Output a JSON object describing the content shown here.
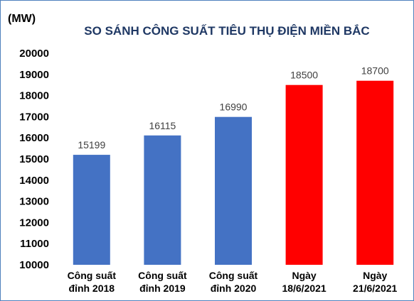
{
  "chart_data": {
    "type": "bar",
    "title": "SO SÁNH CÔNG SUẤT TIÊU THỤ ĐIỆN MIỀN BẮC",
    "unit_label": "(MW)",
    "ylim": [
      10000,
      20000
    ],
    "yticks": [
      10000,
      11000,
      12000,
      13000,
      14000,
      15000,
      16000,
      17000,
      18000,
      19000,
      20000
    ],
    "grid": false,
    "categories": [
      [
        "Công suất",
        "đỉnh 2018"
      ],
      [
        "Công suất",
        "đỉnh 2019"
      ],
      [
        "Công suất",
        "đỉnh 2020"
      ],
      [
        "Ngày",
        "18/6/2021"
      ],
      [
        "Ngày",
        "21/6/2021"
      ]
    ],
    "values": [
      15199,
      16115,
      16990,
      18500,
      18700
    ],
    "bar_colors": [
      "#4472c4",
      "#4472c4",
      "#4472c4",
      "#ff0000",
      "#ff0000"
    ]
  }
}
